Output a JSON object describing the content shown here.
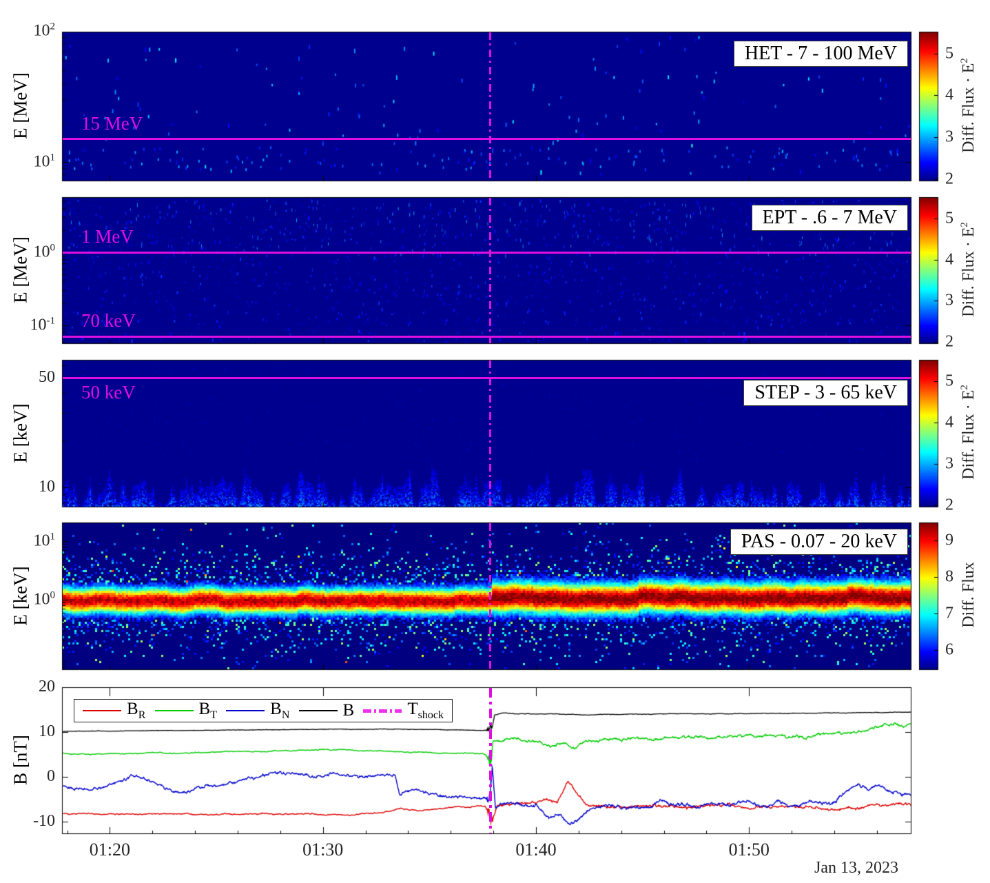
{
  "figure": {
    "date_label": "Jan 13, 2023",
    "background": "#ffffff",
    "accent_magenta": "#df10df",
    "shock_time_label": "01:37:50"
  },
  "x_axis": {
    "tick_labels": [
      "01:20",
      "01:30",
      "01:40",
      "01:50"
    ],
    "tick_minutes": [
      20,
      30,
      40,
      50
    ],
    "minor_tick_step_minutes": 2,
    "range_minutes": [
      17.8,
      57.7
    ]
  },
  "chart_data": [
    {
      "type": "heatmap",
      "instrument": "HET",
      "title": "HET - 7 - 100 MeV",
      "y_axis": {
        "label": "E [MeV]",
        "scale": "log",
        "range": [
          7.1,
          99
        ],
        "ticks": [
          {
            "base": "10",
            "exp": "2",
            "value": 100
          },
          {
            "base": "10",
            "exp": "1",
            "value": 10
          }
        ]
      },
      "colorbar": {
        "label": "Diff. Flux · E",
        "label_sup": "2",
        "colormap": "jet",
        "range": [
          1.95,
          5.52
        ],
        "ticks": [
          {
            "text": "5",
            "value": 5
          },
          {
            "text": "4",
            "value": 4
          },
          {
            "text": "3",
            "value": 3
          },
          {
            "text": "2",
            "value": 2
          }
        ]
      },
      "background_level": 2.0,
      "speckles": {
        "count": 150,
        "value_range": [
          2.3,
          3.2
        ],
        "band_log10": [
          0.95,
          1.12
        ],
        "band_count": 130
      },
      "marker_lines": [
        {
          "label": "15 MeV",
          "value": 15,
          "label_below": false
        }
      ],
      "seed": 11
    },
    {
      "type": "heatmap",
      "instrument": "EPT",
      "title": "EPT - .6 - 7 MeV",
      "y_axis": {
        "label": "E [MeV]",
        "scale": "log",
        "range": [
          0.056,
          5.7
        ],
        "ticks": [
          {
            "base": "10",
            "exp": "0",
            "value": 1
          },
          {
            "base": "10",
            "exp": "-1",
            "value": 0.1
          }
        ]
      },
      "colorbar": {
        "label": "Diff. Flux · E",
        "label_sup": "2",
        "colormap": "jet",
        "range": [
          1.95,
          5.52
        ],
        "ticks": [
          {
            "text": "5",
            "value": 5
          },
          {
            "text": "4",
            "value": 4
          },
          {
            "text": "3",
            "value": 3
          },
          {
            "text": "2",
            "value": 2
          }
        ]
      },
      "background_level": 2.0,
      "speckles": {
        "count": 1500,
        "value_range": [
          2.1,
          2.6
        ],
        "bright_count": 220,
        "bright_range": [
          2.5,
          3.0
        ]
      },
      "marker_lines": [
        {
          "label": "1 MeV",
          "value": 1,
          "label_below": false
        },
        {
          "label": "70 keV",
          "value": 0.07,
          "label_below": false
        }
      ],
      "seed": 22
    },
    {
      "type": "heatmap",
      "instrument": "STEP",
      "title": "STEP - 3 - 65 keV",
      "y_axis": {
        "label": "E [keV]",
        "scale": "log",
        "range": [
          7.5,
          65
        ],
        "ticks": [
          {
            "base": "50",
            "exp": "",
            "value": 50
          },
          {
            "base": "10",
            "exp": "",
            "value": 10
          }
        ]
      },
      "colorbar": {
        "label": "Diff. Flux · E",
        "label_sup": "2",
        "colormap": "jet",
        "range": [
          1.95,
          5.52
        ],
        "ticks": [
          {
            "text": "5",
            "value": 5
          },
          {
            "text": "4",
            "value": 4
          },
          {
            "text": "3",
            "value": 3
          },
          {
            "text": "2",
            "value": 2
          }
        ]
      },
      "background_level": 2.0,
      "noise_floor": {
        "top_log10": 0.95,
        "wiggle": 0.1,
        "value_range": [
          2.05,
          3.1
        ]
      },
      "speckles": {
        "count": 260,
        "value_range": [
          2.05,
          2.35
        ]
      },
      "marker_lines": [
        {
          "label": "50 keV",
          "value": 50,
          "label_below": true
        }
      ],
      "seed": 33
    },
    {
      "type": "heatmap",
      "instrument": "PAS",
      "title": "PAS - 0.07 - 20 keV",
      "y_axis": {
        "label": "E [keV]",
        "scale": "log",
        "range": [
          0.063,
          20.8
        ],
        "ticks": [
          {
            "base": "10",
            "exp": "1",
            "value": 10
          },
          {
            "base": "10",
            "exp": "0",
            "value": 1
          }
        ]
      },
      "colorbar": {
        "label": "Diff. Flux",
        "label_sup": "",
        "colormap": "jet",
        "range": [
          5.45,
          9.5
        ],
        "ticks": [
          {
            "text": "9",
            "value": 9
          },
          {
            "text": "8",
            "value": 8
          },
          {
            "text": "7",
            "value": 7
          },
          {
            "text": "6",
            "value": 6
          }
        ]
      },
      "band": {
        "center_kev_pre": 0.99,
        "center_kev_post": 1.11,
        "peak_pre": 9.25,
        "peak_post": 9.5,
        "sigma_log10_pre": 0.155,
        "sigma_log10_post": 0.185
      },
      "marker_lines": [],
      "seed": 44
    },
    {
      "type": "line",
      "y_axis": {
        "label": "B [nT]",
        "scale": "linear",
        "range": [
          -12.8,
          20.2
        ],
        "ticks": [
          {
            "base": "20",
            "exp": "",
            "value": 20
          },
          {
            "base": "10",
            "exp": "",
            "value": 10
          },
          {
            "base": "0",
            "exp": "",
            "value": 0
          },
          {
            "base": "-10",
            "exp": "",
            "value": -10
          }
        ]
      },
      "shock_minute": 37.85,
      "series": [
        {
          "name": "B",
          "sub": "R",
          "color": "#dd0000",
          "noise_pre": 0.18,
          "noise_post": 0.45,
          "burst": 1.4,
          "points": [
            [
              17.8,
              -8.3
            ],
            [
              19.5,
              -8.25
            ],
            [
              21,
              -8.35
            ],
            [
              22.5,
              -8.3
            ],
            [
              24,
              -8.35
            ],
            [
              25.5,
              -8.3
            ],
            [
              27,
              -8.25
            ],
            [
              28.5,
              -8.3
            ],
            [
              30,
              -8.35
            ],
            [
              31.2,
              -8.6
            ],
            [
              32,
              -8.2
            ],
            [
              32.8,
              -7.9
            ],
            [
              33.6,
              -7.15
            ],
            [
              34.4,
              -7.5
            ],
            [
              35.2,
              -7.05
            ],
            [
              36,
              -6.85
            ],
            [
              36.8,
              -6.7
            ],
            [
              37.6,
              -6.5
            ],
            [
              37.95,
              -9.3
            ],
            [
              38.2,
              -6.1
            ],
            [
              39,
              -6.3
            ],
            [
              39.8,
              -5.6
            ],
            [
              40.4,
              -5.0
            ],
            [
              41,
              -5.6
            ],
            [
              41.5,
              -1.3
            ],
            [
              42,
              -4.2
            ],
            [
              42.5,
              -6.4
            ],
            [
              43.3,
              -6.9
            ],
            [
              44.1,
              -6.3
            ],
            [
              45,
              -6.7
            ],
            [
              46,
              -6.3
            ],
            [
              47,
              -6.6
            ],
            [
              48,
              -6.4
            ],
            [
              49,
              -6.2
            ],
            [
              50,
              -6.9
            ],
            [
              51,
              -7.1
            ],
            [
              52,
              -6.6
            ],
            [
              53,
              -6.9
            ],
            [
              54,
              -7.3
            ],
            [
              55,
              -6.9
            ],
            [
              56,
              -6.6
            ],
            [
              57.7,
              -6.3
            ]
          ]
        },
        {
          "name": "B",
          "sub": "T",
          "color": "#00cc00",
          "noise_pre": 0.15,
          "noise_post": 0.45,
          "burst": 2.0,
          "points": [
            [
              17.8,
              5.2
            ],
            [
              19,
              5.05
            ],
            [
              20.5,
              5.15
            ],
            [
              22,
              5.35
            ],
            [
              23.5,
              5.25
            ],
            [
              25,
              5.5
            ],
            [
              26.5,
              5.65
            ],
            [
              28,
              5.8
            ],
            [
              29.5,
              6.0
            ],
            [
              31,
              6.05
            ],
            [
              32.5,
              5.75
            ],
            [
              33.5,
              5.6
            ],
            [
              34.5,
              5.5
            ],
            [
              35.5,
              5.35
            ],
            [
              36.5,
              5.25
            ],
            [
              37.5,
              5.15
            ],
            [
              37.9,
              4.2
            ],
            [
              38.0,
              8.3
            ],
            [
              38.6,
              8.2
            ],
            [
              39.5,
              8.05
            ],
            [
              40.3,
              7.6
            ],
            [
              40.8,
              6.9
            ],
            [
              41.3,
              7.6
            ],
            [
              41.8,
              6.6
            ],
            [
              42.3,
              7.9
            ],
            [
              43,
              8.2
            ],
            [
              44,
              8.35
            ],
            [
              45.5,
              8.5
            ],
            [
              47,
              8.7
            ],
            [
              48.5,
              8.85
            ],
            [
              50,
              9.0
            ],
            [
              51.5,
              9.15
            ],
            [
              52.5,
              8.7
            ],
            [
              53.5,
              9.5
            ],
            [
              54.5,
              9.9
            ],
            [
              55.3,
              10.3
            ],
            [
              56,
              11.2
            ],
            [
              56.8,
              11.6
            ],
            [
              57.7,
              11.8
            ]
          ]
        },
        {
          "name": "B",
          "sub": "N",
          "color": "#0000cc",
          "noise_pre": 0.45,
          "noise_post": 0.55,
          "burst": 2.8,
          "points": [
            [
              17.8,
              -2.3
            ],
            [
              18.8,
              -2.6
            ],
            [
              19.8,
              -2.2
            ],
            [
              20.6,
              -1.0
            ],
            [
              21.0,
              0.7
            ],
            [
              21.4,
              0.2
            ],
            [
              21.9,
              -1.3
            ],
            [
              22.6,
              -2.6
            ],
            [
              23.2,
              -3.6
            ],
            [
              24,
              -2.8
            ],
            [
              24.8,
              -1.9
            ],
            [
              25.6,
              -1.2
            ],
            [
              26.4,
              -0.3
            ],
            [
              27.2,
              0.6
            ],
            [
              28,
              0.9
            ],
            [
              28.8,
              0.4
            ],
            [
              29.6,
              0.2
            ],
            [
              30.4,
              0.6
            ],
            [
              31.2,
              0.3
            ],
            [
              32,
              0.1
            ],
            [
              32.8,
              0.4
            ],
            [
              33.4,
              0.2
            ],
            [
              33.6,
              -3.9
            ],
            [
              34.2,
              -2.7
            ],
            [
              34.8,
              -3.2
            ],
            [
              35.4,
              -4.1
            ],
            [
              36,
              -4.4
            ],
            [
              36.6,
              -4.2
            ],
            [
              37.2,
              -4.6
            ],
            [
              37.8,
              -5.0
            ],
            [
              37.95,
              1.8
            ],
            [
              38.1,
              -6.8
            ],
            [
              38.5,
              -5.6
            ],
            [
              39.2,
              -5.9
            ],
            [
              40,
              -6.6
            ],
            [
              40.6,
              -9.2
            ],
            [
              41.1,
              -8.2
            ],
            [
              41.6,
              -10.6
            ],
            [
              42.1,
              -9.0
            ],
            [
              42.7,
              -7.0
            ],
            [
              43.4,
              -6.2
            ],
            [
              44.2,
              -6.6
            ],
            [
              45,
              -6.9
            ],
            [
              45.8,
              -5.6
            ],
            [
              46.6,
              -6.1
            ],
            [
              47.4,
              -6.6
            ],
            [
              48.2,
              -5.9
            ],
            [
              49,
              -6.3
            ],
            [
              49.8,
              -5.7
            ],
            [
              50.6,
              -6.4
            ],
            [
              51.4,
              -5.6
            ],
            [
              52.2,
              -6.6
            ],
            [
              53,
              -5.2
            ],
            [
              53.8,
              -6.1
            ],
            [
              54.6,
              -3.0
            ],
            [
              55.1,
              -1.6
            ],
            [
              55.6,
              -3.2
            ],
            [
              56.1,
              -1.9
            ],
            [
              56.7,
              -3.6
            ],
            [
              57.2,
              -4.2
            ],
            [
              57.7,
              -3.6
            ]
          ]
        },
        {
          "name": "B",
          "sub": "",
          "color": "#000000",
          "noise_pre": 0.05,
          "noise_post": 0.08,
          "burst": 1.5,
          "points": [
            [
              17.8,
              10.15
            ],
            [
              22,
              10.3
            ],
            [
              26,
              10.45
            ],
            [
              30,
              10.6
            ],
            [
              33,
              10.65
            ],
            [
              35,
              10.55
            ],
            [
              37,
              10.45
            ],
            [
              37.7,
              10.35
            ],
            [
              37.95,
              11.0
            ],
            [
              38.05,
              13.8
            ],
            [
              38.4,
              14.25
            ],
            [
              39,
              14.1
            ],
            [
              40.5,
              14.05
            ],
            [
              42,
              13.85
            ],
            [
              43.5,
              13.95
            ],
            [
              45,
              14.0
            ],
            [
              47,
              14.05
            ],
            [
              49,
              14.1
            ],
            [
              51,
              14.15
            ],
            [
              53,
              14.2
            ],
            [
              55,
              14.3
            ],
            [
              57.7,
              14.45
            ]
          ]
        }
      ],
      "legend_shock": {
        "name": "T",
        "sub": "shock",
        "color": "#f030f0"
      }
    }
  ]
}
